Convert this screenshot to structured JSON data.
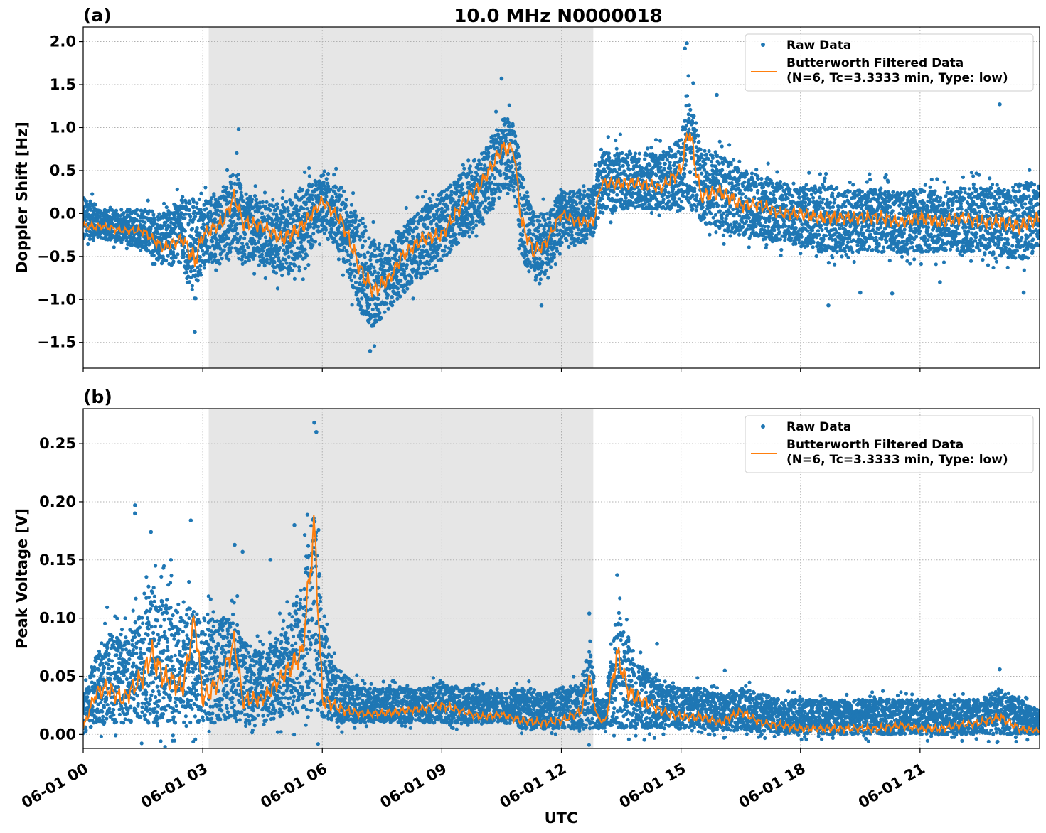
{
  "figure": {
    "title": "10.0 MHz N0000018",
    "xlabel": "UTC"
  },
  "colors": {
    "raw": "#1f77b4",
    "filtered": "#ff7f0e",
    "shade": "#e6e6e6",
    "grid": "#b0b0b0"
  },
  "chart_data": [
    {
      "type": "scatter",
      "panel_label": "(a)",
      "ylabel": "Doppler Shift [Hz]",
      "xlim": [
        0,
        24
      ],
      "ylim": [
        -1.8,
        2.17
      ],
      "yticks": [
        -1.5,
        -1.0,
        -0.5,
        0.0,
        0.5,
        1.0,
        1.5,
        2.0
      ],
      "ytick_labels": [
        "−1.5",
        "−1.0",
        "−0.5",
        "0.0",
        "0.5",
        "1.0",
        "1.5",
        "2.0"
      ],
      "xticks": [
        0,
        3,
        6,
        9,
        12,
        15,
        18,
        21
      ],
      "xtick_labels": [
        "06-01 00",
        "06-01 03",
        "06-01 06",
        "06-01 09",
        "06-01 12",
        "06-01 15",
        "06-01 18",
        "06-01 21"
      ],
      "shaded_interval": [
        3.15,
        12.8
      ],
      "grid": true,
      "legend": {
        "position": "top-right",
        "entries": [
          "Raw Data",
          "Butterworth Filtered Data",
          "(N=6, Tc=3.3333 min, Type: low)"
        ]
      },
      "series": [
        {
          "name": "Raw Data",
          "kind": "band",
          "x": [
            0,
            0.5,
            1,
            1.5,
            2,
            2.5,
            2.8,
            3,
            3.5,
            3.8,
            4,
            4.5,
            5,
            5.5,
            6,
            6.5,
            7,
            7.3,
            7.7,
            8,
            8.5,
            9,
            9.5,
            10,
            10.5,
            10.8,
            11,
            11.3,
            11.6,
            12,
            12.4,
            12.8,
            13,
            13.5,
            14,
            14.5,
            15,
            15.2,
            15.5,
            16,
            16.5,
            17,
            17.5,
            18,
            18.5,
            19,
            19.5,
            20,
            20.5,
            21,
            21.5,
            22,
            22.5,
            23,
            23.5,
            24
          ],
          "upper": [
            0.2,
            0.05,
            0.05,
            0.05,
            0.0,
            0.15,
            0.2,
            0.15,
            0.25,
            0.55,
            0.3,
            0.15,
            0.1,
            0.35,
            0.4,
            0.3,
            -0.1,
            -0.3,
            -0.35,
            -0.15,
            0.05,
            0.25,
            0.5,
            0.7,
            1.1,
            1.1,
            0.5,
            0.0,
            0.0,
            0.25,
            0.25,
            0.3,
            0.7,
            0.75,
            0.7,
            0.7,
            0.9,
            1.5,
            0.75,
            0.7,
            0.5,
            0.45,
            0.35,
            0.3,
            0.35,
            0.3,
            0.3,
            0.3,
            0.25,
            0.3,
            0.25,
            0.3,
            0.3,
            0.3,
            0.35,
            0.4
          ],
          "lower": [
            -0.3,
            -0.3,
            -0.35,
            -0.4,
            -0.6,
            -0.6,
            -1.1,
            -0.6,
            -0.55,
            -0.4,
            -0.55,
            -0.6,
            -0.75,
            -0.6,
            -0.2,
            -0.55,
            -1.2,
            -1.35,
            -1.1,
            -0.95,
            -0.75,
            -0.55,
            -0.3,
            -0.1,
            0.2,
            0.25,
            -0.5,
            -0.8,
            -0.7,
            -0.35,
            -0.35,
            -0.3,
            0.0,
            0.05,
            0.05,
            0.05,
            0.0,
            0.1,
            -0.1,
            -0.2,
            -0.25,
            -0.3,
            -0.35,
            -0.4,
            -0.45,
            -0.45,
            -0.45,
            -0.45,
            -0.45,
            -0.45,
            -0.45,
            -0.45,
            -0.45,
            -0.5,
            -0.55,
            -0.45
          ]
        },
        {
          "name": "Butterworth Filtered Data",
          "kind": "line",
          "x": [
            0,
            0.5,
            1,
            1.5,
            2,
            2.5,
            2.8,
            3,
            3.5,
            3.8,
            4,
            4.5,
            5,
            5.5,
            6,
            6.5,
            7,
            7.3,
            7.7,
            8,
            8.5,
            9,
            9.5,
            10,
            10.5,
            10.8,
            11,
            11.3,
            11.6,
            12,
            12.4,
            12.8,
            13,
            13.5,
            14,
            14.5,
            15,
            15.2,
            15.5,
            16,
            16.5,
            17,
            17.5,
            18,
            18.5,
            19,
            19.5,
            20,
            20.5,
            21,
            21.5,
            22,
            22.5,
            23,
            23.5,
            24
          ],
          "y": [
            -0.15,
            -0.15,
            -0.2,
            -0.2,
            -0.4,
            -0.3,
            -0.55,
            -0.25,
            -0.1,
            0.2,
            -0.1,
            -0.15,
            -0.3,
            -0.15,
            0.15,
            -0.1,
            -0.7,
            -0.9,
            -0.75,
            -0.5,
            -0.3,
            -0.25,
            0.1,
            0.35,
            0.75,
            0.75,
            -0.1,
            -0.45,
            -0.35,
            0.0,
            -0.1,
            -0.1,
            0.35,
            0.35,
            0.35,
            0.3,
            0.5,
            1.0,
            0.2,
            0.25,
            0.1,
            0.1,
            0.0,
            0.0,
            -0.05,
            -0.05,
            -0.05,
            -0.05,
            -0.1,
            -0.05,
            -0.1,
            -0.05,
            -0.1,
            -0.1,
            -0.15,
            -0.05
          ]
        }
      ],
      "spikes": [
        {
          "x": 2.8,
          "y": -1.38
        },
        {
          "x": 3.9,
          "y": 0.98
        },
        {
          "x": 7.2,
          "y": -1.6
        },
        {
          "x": 10.5,
          "y": 1.57
        },
        {
          "x": 11.5,
          "y": -1.07
        },
        {
          "x": 15.15,
          "y": 1.98
        },
        {
          "x": 15.1,
          "y": 1.92
        },
        {
          "x": 15.9,
          "y": 1.38
        },
        {
          "x": 18.7,
          "y": -1.07
        },
        {
          "x": 19.5,
          "y": -0.92
        },
        {
          "x": 20.3,
          "y": -0.93
        },
        {
          "x": 21.5,
          "y": -0.8
        },
        {
          "x": 23.0,
          "y": 1.27
        },
        {
          "x": 23.6,
          "y": -0.92
        }
      ]
    },
    {
      "type": "scatter",
      "panel_label": "(b)",
      "ylabel": "Peak Voltage [V]",
      "xlim": [
        0,
        24
      ],
      "ylim": [
        -0.012,
        0.28
      ],
      "yticks": [
        0.0,
        0.05,
        0.1,
        0.15,
        0.2,
        0.25
      ],
      "ytick_labels": [
        "0.00",
        "0.05",
        "0.10",
        "0.15",
        "0.20",
        "0.25"
      ],
      "xticks": [
        0,
        3,
        6,
        9,
        12,
        15,
        18,
        21
      ],
      "xtick_labels": [
        "06-01 00",
        "06-01 03",
        "06-01 06",
        "06-01 09",
        "06-01 12",
        "06-01 15",
        "06-01 18",
        "06-01 21"
      ],
      "shaded_interval": [
        3.15,
        12.8
      ],
      "grid": true,
      "legend": {
        "position": "top-right",
        "entries": [
          "Raw Data",
          "Butterworth Filtered Data",
          "(N=6, Tc=3.3333 min, Type: low)"
        ]
      },
      "series": [
        {
          "name": "Raw Data",
          "kind": "band",
          "x": [
            0,
            0.3,
            0.6,
            1,
            1.5,
            1.7,
            2,
            2.5,
            2.8,
            3,
            3.5,
            3.8,
            4,
            4.5,
            5,
            5.5,
            5.8,
            6,
            6.3,
            6.6,
            7,
            7.5,
            8,
            8.5,
            9,
            9.5,
            10,
            10.5,
            11,
            11.5,
            12,
            12.5,
            12.7,
            12.9,
            13.1,
            13.4,
            13.7,
            14,
            14.5,
            15,
            15.5,
            16,
            16.5,
            17,
            17.5,
            18,
            18.5,
            19,
            19.5,
            20,
            20.5,
            21,
            21.5,
            22,
            22.5,
            23,
            23.5,
            24
          ],
          "upper": [
            0.03,
            0.07,
            0.09,
            0.08,
            0.11,
            0.13,
            0.12,
            0.1,
            0.12,
            0.1,
            0.1,
            0.11,
            0.08,
            0.07,
            0.09,
            0.13,
            0.2,
            0.1,
            0.06,
            0.05,
            0.04,
            0.04,
            0.04,
            0.04,
            0.045,
            0.04,
            0.04,
            0.035,
            0.04,
            0.035,
            0.04,
            0.045,
            0.08,
            0.03,
            0.03,
            0.11,
            0.08,
            0.06,
            0.045,
            0.04,
            0.04,
            0.035,
            0.04,
            0.035,
            0.03,
            0.03,
            0.03,
            0.03,
            0.03,
            0.03,
            0.03,
            0.03,
            0.03,
            0.03,
            0.03,
            0.04,
            0.03,
            0.02
          ],
          "lower": [
            0.0,
            0.01,
            0.01,
            0.01,
            0.01,
            0.01,
            0.01,
            0.01,
            0.01,
            0.01,
            0.01,
            0.01,
            0.01,
            0.01,
            0.015,
            0.02,
            0.02,
            0.015,
            0.01,
            0.01,
            0.01,
            0.01,
            0.01,
            0.01,
            0.01,
            0.01,
            0.01,
            0.01,
            0.005,
            0.005,
            0.005,
            0.005,
            0.005,
            0.005,
            0.005,
            0.005,
            0.005,
            0.005,
            0.005,
            0.005,
            0.005,
            0.003,
            0.003,
            0.002,
            0.002,
            0.0,
            0.0,
            0.0,
            0.0,
            0.0,
            0.0,
            0.0,
            0.0,
            0.0,
            0.0,
            0.0,
            0.0,
            0.0
          ]
        },
        {
          "name": "Butterworth Filtered Data",
          "kind": "line",
          "x": [
            0,
            0.3,
            0.6,
            1,
            1.5,
            1.7,
            2,
            2.5,
            2.8,
            3,
            3.5,
            3.8,
            4,
            4.5,
            5,
            5.5,
            5.8,
            6,
            6.3,
            6.6,
            7,
            7.5,
            8,
            8.5,
            9,
            9.5,
            10,
            10.5,
            11,
            11.5,
            12,
            12.5,
            12.7,
            12.9,
            13.1,
            13.4,
            13.7,
            14,
            14.5,
            15,
            15.5,
            16,
            16.5,
            17,
            17.5,
            18,
            18.5,
            19,
            19.5,
            20,
            20.5,
            21,
            21.5,
            22,
            22.5,
            23,
            23.5,
            24
          ],
          "y": [
            0.005,
            0.035,
            0.04,
            0.03,
            0.05,
            0.07,
            0.05,
            0.04,
            0.1,
            0.03,
            0.05,
            0.08,
            0.03,
            0.03,
            0.05,
            0.07,
            0.18,
            0.03,
            0.025,
            0.02,
            0.018,
            0.018,
            0.02,
            0.022,
            0.025,
            0.02,
            0.015,
            0.017,
            0.012,
            0.01,
            0.012,
            0.02,
            0.05,
            0.015,
            0.01,
            0.07,
            0.035,
            0.03,
            0.02,
            0.015,
            0.015,
            0.01,
            0.02,
            0.01,
            0.008,
            0.005,
            0.005,
            0.005,
            0.005,
            0.005,
            0.008,
            0.005,
            0.005,
            0.008,
            0.01,
            0.015,
            0.005,
            0.003
          ]
        }
      ],
      "spikes": [
        {
          "x": 1.3,
          "y": 0.197
        },
        {
          "x": 1.3,
          "y": 0.19
        },
        {
          "x": 1.7,
          "y": 0.174
        },
        {
          "x": 2.2,
          "y": 0.15
        },
        {
          "x": 2.7,
          "y": 0.184
        },
        {
          "x": 3.8,
          "y": 0.163
        },
        {
          "x": 4.0,
          "y": 0.157
        },
        {
          "x": 4.7,
          "y": 0.15
        },
        {
          "x": 5.3,
          "y": 0.18
        },
        {
          "x": 5.8,
          "y": 0.268
        },
        {
          "x": 5.85,
          "y": 0.26
        },
        {
          "x": 12.7,
          "y": 0.104
        },
        {
          "x": 13.4,
          "y": 0.137
        },
        {
          "x": 14.4,
          "y": 0.078
        },
        {
          "x": 16.1,
          "y": 0.055
        },
        {
          "x": 23.0,
          "y": 0.056
        }
      ]
    }
  ]
}
